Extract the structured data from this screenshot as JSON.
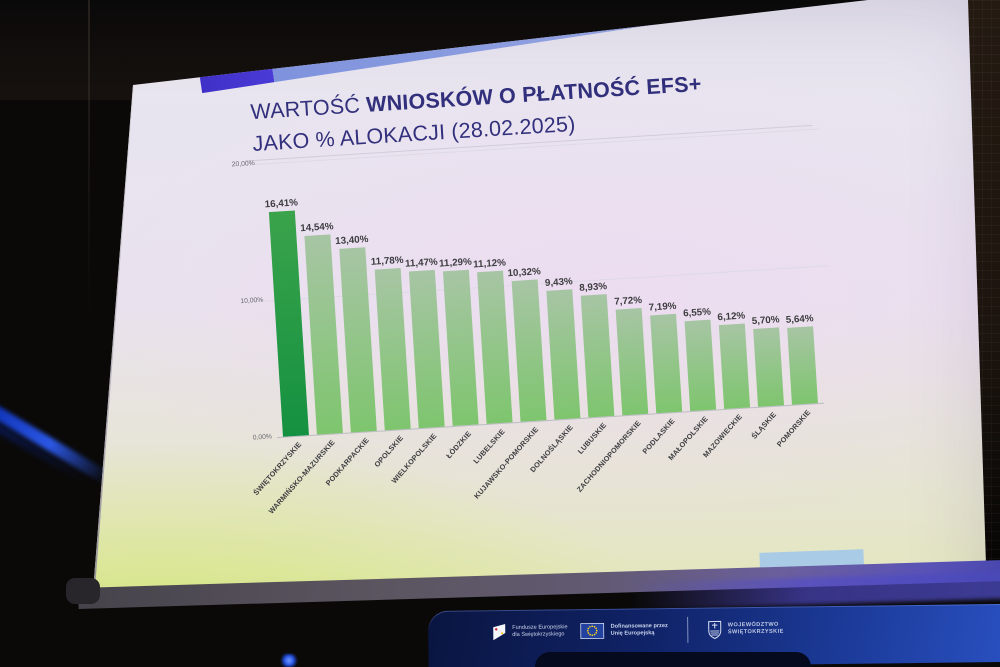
{
  "slide": {
    "title": {
      "prefix": "WARTOŚĆ ",
      "bold": "WNIOSKÓW O PŁATNOŚĆ EFS+",
      "line2": "JAKO % ALOKACJI (28.02.2025)"
    }
  },
  "chart_data": {
    "type": "bar",
    "title": "WARTOŚĆ WNIOSKÓW O PŁATNOŚĆ EFS+ JAKO % ALOKACJI (28.02.2025)",
    "categories": [
      "ŚWIĘTOKRZYSKIE",
      "WARMIŃSKO-MAZURSKIE",
      "PODKARPACKIE",
      "OPOLSKIE",
      "WIELKOPOLSKIE",
      "ŁÓDZKIE",
      "LUBELSKIE",
      "KUJAWSKO-POMORSKIE",
      "DOLNOŚLĄSKIE",
      "LUBUSKIE",
      "ZACHODNIOPOMORSKIE",
      "PODLASKIE",
      "MAŁOPOLSKIE",
      "MAZOWIECKIE",
      "ŚLĄSKIE",
      "POMORSKIE"
    ],
    "values": [
      16.41,
      14.54,
      13.4,
      11.78,
      11.47,
      11.29,
      11.12,
      10.32,
      9.43,
      8.93,
      7.72,
      7.19,
      6.55,
      6.12,
      5.7,
      5.64
    ],
    "value_labels": [
      "16,41%",
      "14,54%",
      "13,40%",
      "11,78%",
      "11,47%",
      "11,29%",
      "11,12%",
      "10,32%",
      "9,43%",
      "8,93%",
      "7,72%",
      "7,19%",
      "6,55%",
      "6,12%",
      "5,70%",
      "5,64%"
    ],
    "y_ticks": [
      "20,00%",
      "10,00%",
      "0,00%"
    ],
    "ylim": [
      0,
      20
    ],
    "xlabel": "",
    "ylabel": "",
    "grid": true,
    "legend": false,
    "highlight_index": 0,
    "colors": {
      "highlight_top": "#3aa34b",
      "highlight_bottom": "#149140",
      "bar_top": "#a7c5a4",
      "bar_bottom": "#7ec56e",
      "accent_dark": "#4b3bd8",
      "accent_light": "#93a7e6",
      "title_text": "#32307c"
    }
  },
  "footer": {
    "logos": [
      {
        "icon": "fundusze-europejskie-flag-icon",
        "line1": "Fundusze Europejskie",
        "line2": "dla Świętokrzyskiego"
      },
      {
        "icon": "eu-flag-icon",
        "line1": "Dofinansowane przez",
        "line2": "Unię Europejską"
      },
      {
        "icon": "swietokrzyskie-coat-of-arms-icon",
        "line1": "WOJEWÓDZTWO",
        "line2": "ŚWIĘTOKRZYSKIE"
      }
    ]
  }
}
